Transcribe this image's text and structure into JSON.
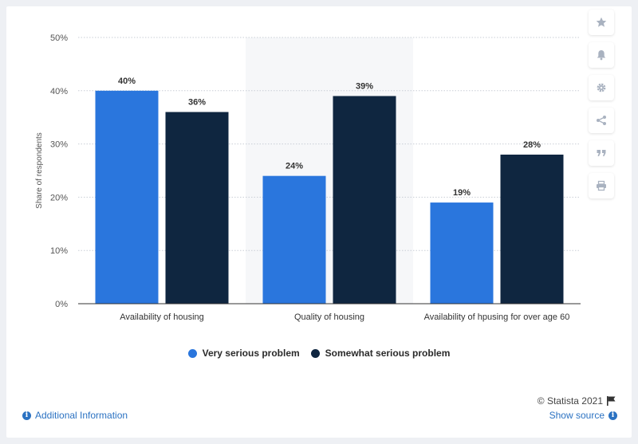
{
  "chart_data": {
    "type": "bar",
    "categories": [
      "Availability of housing",
      "Quality of housing",
      "Availability of hpusing for over age 60"
    ],
    "series": [
      {
        "name": "Very serious problem",
        "values": [
          40,
          24,
          19
        ],
        "color": "#2a76dd"
      },
      {
        "name": "Somewhat serious problem",
        "values": [
          36,
          39,
          28
        ],
        "color": "#0f2640"
      }
    ],
    "value_labels": [
      [
        "40%",
        "24%",
        "19%"
      ],
      [
        "36%",
        "39%",
        "28%"
      ]
    ],
    "ylabel": "Share of respondents",
    "ylim": [
      0,
      50
    ],
    "yticks": [
      0,
      10,
      20,
      30,
      40,
      50
    ],
    "ytick_labels": [
      "0%",
      "10%",
      "20%",
      "30%",
      "40%",
      "50%"
    ],
    "grid": true,
    "highlighted_category": 1,
    "legend_position": "bottom-center"
  },
  "footer": {
    "copyright": "© Statista 2021",
    "additional_info": "Additional Information",
    "show_source": "Show source"
  },
  "toolbar": {
    "icons": [
      "star-icon",
      "bell-icon",
      "gear-icon",
      "share-icon",
      "quote-icon",
      "print-icon"
    ]
  }
}
